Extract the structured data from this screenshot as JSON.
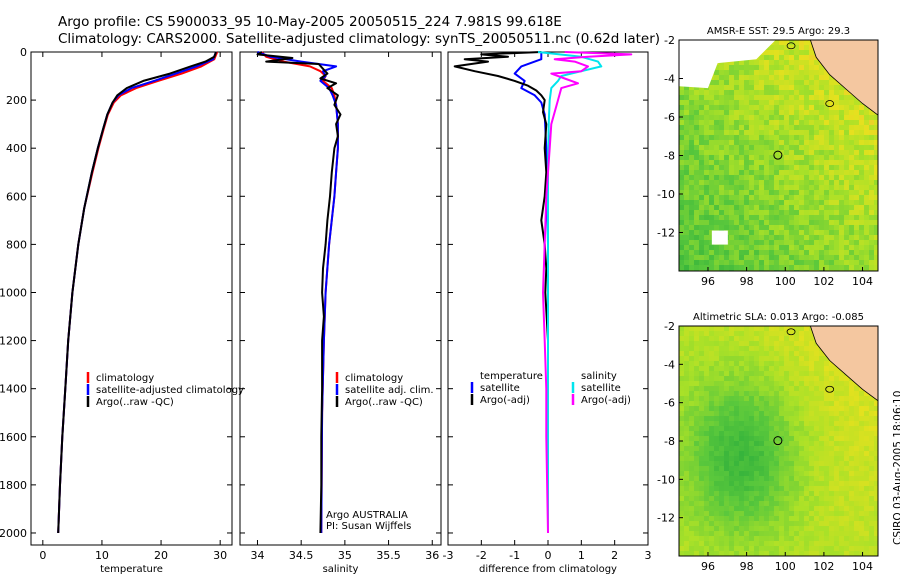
{
  "title": {
    "line1": "Argo profile: CS 5900033_95 10-May-2005 20050515_224 7.981S 99.618E",
    "line2": "Climatology: CARS2000. Satellite-adjusted climatology: synTS_20050511.nc (0.62d later)"
  },
  "credit": "CSIRO 03-Aug-2005 18:06:10",
  "colors": {
    "climatology": "#ff0000",
    "satellite": "#0000ff",
    "argo": "#000000",
    "satellite_salinity": "#00e5ee",
    "argo_salinity_diff": "#ff00ff"
  },
  "chart_data": [
    {
      "type": "line",
      "name": "temperature-profile",
      "xlabel": "temperature",
      "ylabel": "",
      "xlim": [
        -2,
        32
      ],
      "ylim": [
        2050,
        0
      ],
      "xticks": [
        0,
        10,
        20,
        30
      ],
      "yticks": [
        0,
        200,
        400,
        600,
        800,
        1000,
        1200,
        1400,
        1600,
        1800,
        2000
      ],
      "legend": {
        "position": "center-right",
        "entries": [
          "climatology",
          "satellite-adjusted climatology",
          "Argo(..raw -QC)"
        ]
      },
      "series": [
        {
          "name": "climatology",
          "color": "#ff0000",
          "depth": [
            0,
            30,
            60,
            90,
            120,
            150,
            180,
            210,
            260,
            320,
            400,
            500,
            650,
            800,
            1000,
            1200,
            1400,
            1600,
            1800,
            2000
          ],
          "values": [
            29.5,
            29.0,
            26.8,
            23.5,
            19.5,
            15.8,
            13.2,
            12.0,
            11.0,
            10.3,
            9.4,
            8.4,
            7.0,
            6.0,
            5.0,
            4.3,
            3.8,
            3.3,
            2.9,
            2.6
          ]
        },
        {
          "name": "satellite-adjusted climatology",
          "color": "#0000ff",
          "depth": [
            0,
            30,
            60,
            90,
            120,
            150,
            180,
            210,
            260,
            320,
            400,
            500,
            650,
            800,
            1000,
            1200,
            1400,
            1600,
            1800,
            2000
          ],
          "values": [
            29.3,
            28.8,
            26.0,
            22.5,
            18.8,
            15.0,
            12.8,
            11.8,
            10.9,
            10.2,
            9.3,
            8.3,
            7.0,
            6.0,
            5.0,
            4.3,
            3.8,
            3.3,
            2.9,
            2.6
          ]
        },
        {
          "name": "Argo(..raw -QC)",
          "color": "#000000",
          "depth": [
            0,
            20,
            40,
            60,
            90,
            120,
            150,
            180,
            210,
            260,
            320,
            400,
            500,
            650,
            800,
            1000,
            1200,
            1400,
            1600,
            1800,
            2000
          ],
          "values": [
            29.3,
            29.0,
            27.5,
            25.0,
            21.5,
            17.0,
            14.2,
            12.6,
            11.8,
            10.9,
            10.2,
            9.3,
            8.3,
            7.0,
            6.0,
            5.0,
            4.3,
            3.8,
            3.3,
            2.9,
            2.6
          ]
        }
      ]
    },
    {
      "type": "line",
      "name": "salinity-profile",
      "xlabel": "salinity",
      "ylabel": "",
      "xlim": [
        33.8,
        36.1
      ],
      "ylim": [
        2050,
        0
      ],
      "xticks": [
        34,
        34.5,
        35,
        35.5,
        36
      ],
      "xticklabels": [
        "34",
        "34.5",
        "35",
        "35.5",
        "36"
      ],
      "yticks": [
        0,
        200,
        400,
        600,
        800,
        1000,
        1200,
        1400,
        1600,
        1800,
        2000
      ],
      "legend": {
        "position": "center-right",
        "entries": [
          "climatology",
          "satellite adj. clim.",
          "Argo(..raw -QC)"
        ]
      },
      "annotation": [
        "Argo AUSTRALIA",
        "PI: Susan Wijffels"
      ],
      "series": [
        {
          "name": "climatology",
          "color": "#ff0000",
          "depth": [
            0,
            20,
            40,
            60,
            80,
            100,
            120,
            150,
            180,
            220,
            300,
            400,
            500,
            600,
            800,
            1000,
            1200,
            1500,
            2000
          ],
          "values": [
            34.05,
            34.1,
            34.3,
            34.6,
            34.72,
            34.78,
            34.75,
            34.85,
            34.88,
            34.9,
            34.92,
            34.92,
            34.9,
            34.88,
            34.82,
            34.78,
            34.76,
            34.74,
            34.73
          ]
        },
        {
          "name": "satellite adj. clim.",
          "color": "#0000ff",
          "depth": [
            0,
            20,
            40,
            60,
            80,
            100,
            120,
            150,
            180,
            220,
            300,
            400,
            500,
            600,
            800,
            1000,
            1200,
            1500,
            2000
          ],
          "values": [
            34.0,
            34.15,
            34.5,
            34.9,
            34.75,
            34.78,
            34.72,
            34.82,
            34.86,
            34.9,
            34.92,
            34.92,
            34.9,
            34.88,
            34.82,
            34.78,
            34.76,
            34.74,
            34.73
          ]
        },
        {
          "name": "Argo(..raw -QC)",
          "color": "#000000",
          "depth": [
            0,
            10,
            25,
            40,
            50,
            70,
            90,
            110,
            130,
            150,
            180,
            220,
            260,
            300,
            350,
            400,
            500,
            600,
            700,
            800,
            900,
            1000,
            1100,
            1200,
            1400,
            1600,
            1800,
            2000
          ],
          "values": [
            34.05,
            34.0,
            34.4,
            34.1,
            34.7,
            34.75,
            34.8,
            34.72,
            34.9,
            34.8,
            34.92,
            34.88,
            34.95,
            34.9,
            34.92,
            34.88,
            34.85,
            34.83,
            34.8,
            34.78,
            34.75,
            34.74,
            34.76,
            34.74,
            34.74,
            34.73,
            34.73,
            34.72
          ]
        }
      ]
    },
    {
      "type": "line",
      "name": "difference-profile",
      "xlabel": "difference from climatology",
      "ylabel": "",
      "xlim": [
        -3,
        3
      ],
      "ylim": [
        2050,
        0
      ],
      "xticks": [
        -3,
        -2,
        -1,
        0,
        1,
        2,
        3
      ],
      "yticks": [
        0,
        200,
        400,
        600,
        800,
        1000,
        1200,
        1400,
        1600,
        1800,
        2000
      ],
      "legend": {
        "position": "center",
        "entries": [
          "temperature",
          "satellite",
          "Argo(-adj)",
          "salinity",
          "satellite",
          "Argo(-adj)"
        ]
      },
      "series": [
        {
          "name": "temperature satellite",
          "color": "#0000ff",
          "depth": [
            0,
            30,
            60,
            90,
            120,
            150,
            180,
            210,
            260,
            400,
            800,
            1200,
            2000
          ],
          "values": [
            -0.2,
            -0.2,
            -0.8,
            -1.0,
            -0.7,
            -0.8,
            -0.4,
            -0.2,
            -0.1,
            -0.05,
            0,
            0,
            0
          ]
        },
        {
          "name": "temperature Argo(-adj)",
          "color": "#000000",
          "depth": [
            0,
            10,
            20,
            30,
            40,
            50,
            60,
            80,
            100,
            120,
            140,
            160,
            180,
            200,
            250,
            300,
            400,
            500,
            600,
            700,
            800,
            900,
            1000,
            1200,
            1500,
            2000
          ],
          "values": [
            -0.2,
            -2.0,
            -1.2,
            -2.5,
            -1.8,
            -2.3,
            -2.8,
            -2.2,
            -1.5,
            -1.0,
            -0.6,
            -0.35,
            -0.2,
            -0.1,
            -0.15,
            -0.05,
            -0.1,
            -0.05,
            -0.1,
            -0.2,
            -0.1,
            -0.05,
            -0.08,
            0.0,
            0.0,
            0.0
          ]
        },
        {
          "name": "salinity satellite",
          "color": "#00e5ee",
          "depth": [
            0,
            20,
            40,
            60,
            80,
            100,
            120,
            150,
            200,
            300,
            500,
            800,
            1200,
            2000
          ],
          "values": [
            -0.3,
            1.0,
            1.5,
            1.6,
            1.0,
            0.4,
            0.3,
            0.1,
            0.05,
            0.02,
            0,
            0,
            0,
            0
          ]
        },
        {
          "name": "salinity Argo(-adj)",
          "color": "#ff00ff",
          "depth": [
            0,
            10,
            20,
            30,
            40,
            60,
            80,
            90,
            110,
            130,
            150,
            200,
            300,
            400,
            600,
            800,
            1000,
            1200,
            1400,
            1600,
            2000
          ],
          "values": [
            0.5,
            2.5,
            1.2,
            0.2,
            0.8,
            1.2,
            1.0,
            0.1,
            0.5,
            0.9,
            0.4,
            0.3,
            0.1,
            0.05,
            -0.05,
            -0.1,
            -0.15,
            -0.1,
            -0.05,
            -0.05,
            0.0
          ]
        }
      ]
    },
    {
      "type": "heatmap",
      "name": "sst-map",
      "title": "AMSR-E SST: 29.5 Argo: 29.3",
      "xlim": [
        94.5,
        104.8
      ],
      "ylim": [
        -14,
        -2
      ],
      "xticks": [
        96,
        98,
        100,
        102,
        104
      ],
      "yticks": [
        -2,
        -4,
        -6,
        -8,
        -10,
        -12
      ],
      "argo_position": {
        "lon": 99.618,
        "lat": -7.981
      }
    },
    {
      "type": "heatmap",
      "name": "sla-map",
      "title": "Altimetric SLA: 0.013 Argo: -0.085",
      "xlim": [
        94.5,
        104.8
      ],
      "ylim": [
        -14,
        -2
      ],
      "xticks": [
        96,
        98,
        100,
        102,
        104
      ],
      "yticks": [
        -2,
        -4,
        -6,
        -8,
        -10,
        -12
      ],
      "argo_position": {
        "lon": 99.618,
        "lat": -7.981
      }
    }
  ]
}
